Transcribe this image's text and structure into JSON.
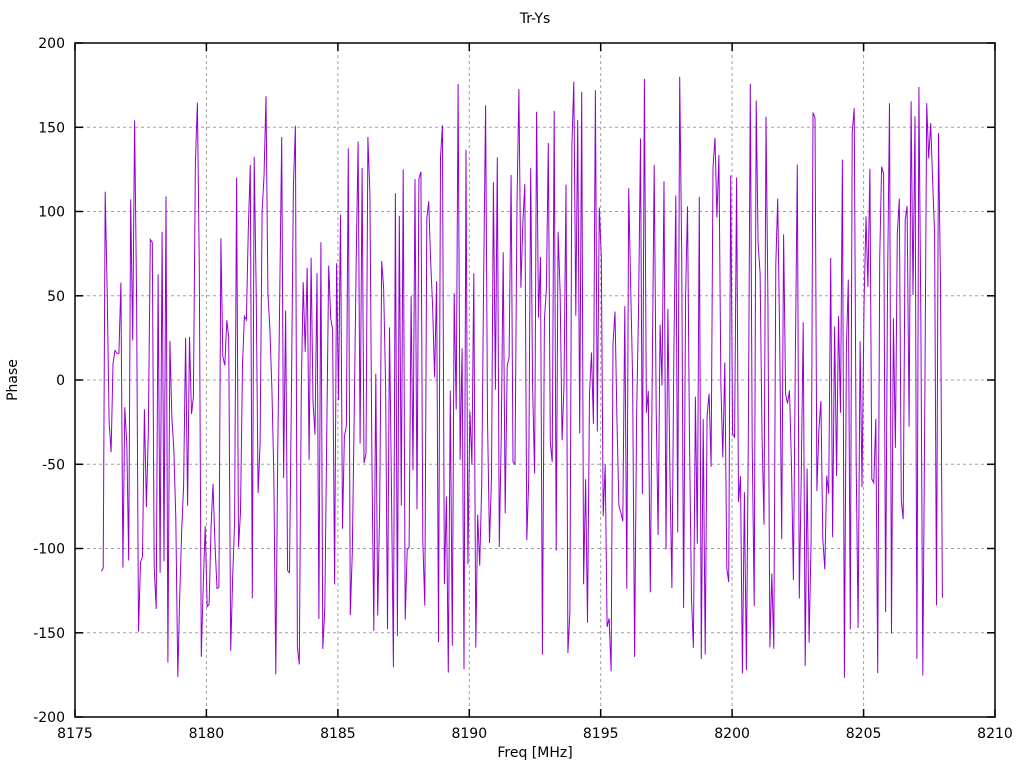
{
  "chart_data": {
    "type": "line",
    "title": "Tr-Ys",
    "xlabel": "Freq [MHz]",
    "ylabel": "Phase",
    "x_range": [
      8175,
      8210
    ],
    "y_range": [
      -200,
      200
    ],
    "x_ticks": [
      8175,
      8180,
      8185,
      8190,
      8195,
      8200,
      8205,
      8210
    ],
    "y_ticks": [
      -200,
      -150,
      -100,
      -50,
      0,
      50,
      100,
      150,
      200
    ],
    "grid": true,
    "grid_style": "dashed",
    "legend_position": "none",
    "series": [
      {
        "name": "Tr-Ys",
        "color": "#9400D3",
        "x_start": 8176.0,
        "x_end": 8208.0,
        "n_points": 430,
        "y_min": -180,
        "y_max": 180,
        "distribution": "uniform-random-phase-noise",
        "seed": 1337
      }
    ],
    "colors": {
      "data": "#9400D3",
      "grid": "#a0a0a0",
      "border": "#000000",
      "background": "#ffffff",
      "text": "#000000"
    }
  }
}
